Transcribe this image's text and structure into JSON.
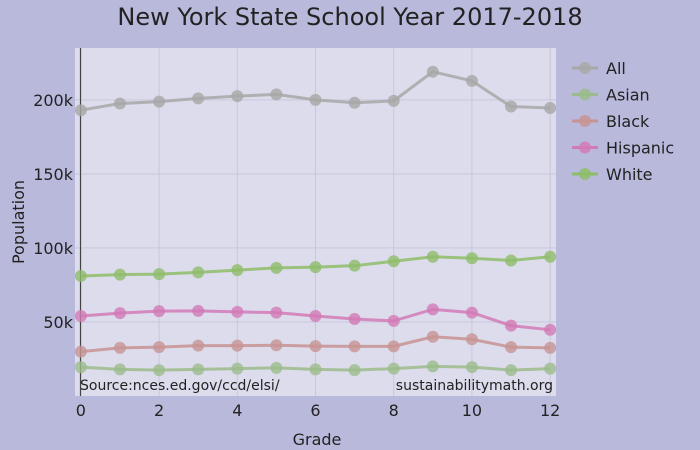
{
  "chart_data": {
    "type": "line",
    "title": "New York State School Year 2017-2018",
    "xlabel": "Grade",
    "ylabel": "Population",
    "x": [
      0,
      1,
      2,
      3,
      4,
      5,
      6,
      7,
      8,
      9,
      10,
      11,
      12
    ],
    "xticks": [
      0,
      2,
      4,
      6,
      8,
      10,
      12
    ],
    "xtick_labels": [
      "0",
      "2",
      "4",
      "6",
      "8",
      "10",
      "12"
    ],
    "yticks": [
      50000,
      100000,
      150000,
      200000
    ],
    "ytick_labels": [
      "50k",
      "100k",
      "150k",
      "200k"
    ],
    "xlim": [
      -0.15,
      12.15
    ],
    "ylim": [
      0,
      235000
    ],
    "grid": true,
    "legend_position": "right",
    "annotations": {
      "source": "Source:nces.ed.gov/ccd/elsi/",
      "credit": "sustainabilitymath.org"
    },
    "series": [
      {
        "name": "All",
        "color": "#a8a8a8",
        "values": [
          193000,
          197500,
          198800,
          201000,
          202500,
          203700,
          200000,
          198000,
          199300,
          219000,
          212800,
          195500,
          194500
        ]
      },
      {
        "name": "Asian",
        "color": "#9cbb8c",
        "values": [
          19500,
          18000,
          17500,
          18000,
          18500,
          19000,
          18000,
          17500,
          18500,
          20000,
          19500,
          17500,
          18500
        ]
      },
      {
        "name": "Black",
        "color": "#c79393",
        "values": [
          30000,
          32500,
          33000,
          34000,
          34000,
          34300,
          33700,
          33500,
          33500,
          40000,
          38300,
          33000,
          32500
        ]
      },
      {
        "name": "Hispanic",
        "color": "#d27ab7",
        "values": [
          54000,
          56000,
          57300,
          57500,
          56800,
          56300,
          54000,
          52000,
          50700,
          58500,
          56300,
          47500,
          44700
        ]
      },
      {
        "name": "White",
        "color": "#8ebd6a",
        "values": [
          81000,
          82000,
          82300,
          83500,
          85000,
          86500,
          87000,
          88000,
          91000,
          94000,
          93000,
          91500,
          94000
        ]
      }
    ]
  }
}
